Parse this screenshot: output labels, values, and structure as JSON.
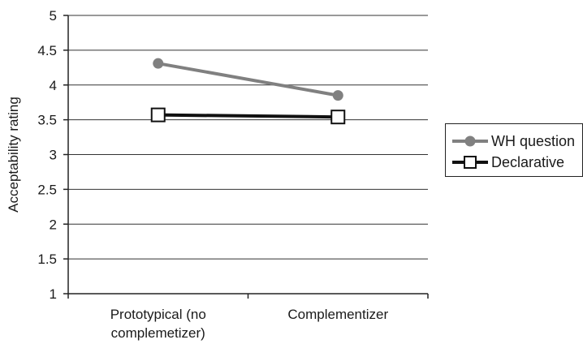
{
  "chart_data": {
    "type": "line",
    "categories": [
      "Prototypical (no complemetizer)",
      "Complementizer"
    ],
    "category_lines": [
      [
        "Prototypical (no",
        "complemetizer)"
      ],
      [
        "Complementizer"
      ]
    ],
    "series": [
      {
        "name": "WH question",
        "values": [
          4.31,
          3.85
        ],
        "color": "#808080",
        "marker": "circle"
      },
      {
        "name": "Declarative",
        "values": [
          3.57,
          3.54
        ],
        "color": "#111111",
        "marker": "square"
      }
    ],
    "ylabel": "Acceptability rating",
    "xlabel": "",
    "title": "",
    "ylim": [
      1,
      5
    ],
    "yticks": [
      "1",
      "1.5",
      "2",
      "2.5",
      "3",
      "3.5",
      "4",
      "4.5",
      "5"
    ],
    "grid": true,
    "legend_position": "right"
  }
}
